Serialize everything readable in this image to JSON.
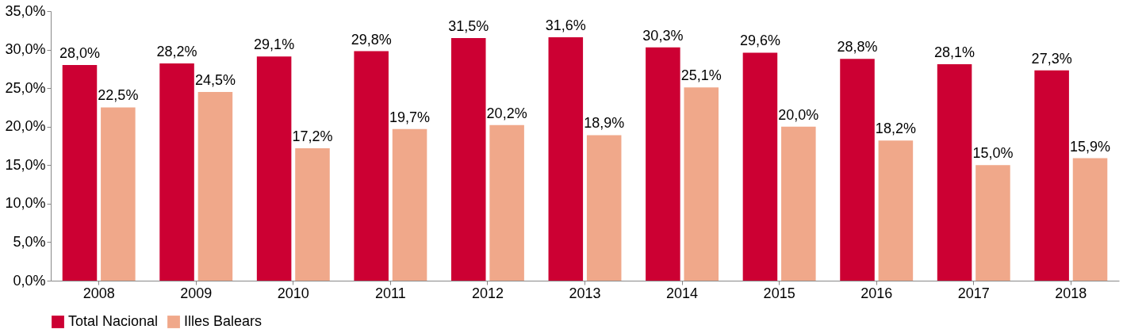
{
  "chart_data": {
    "type": "bar",
    "categories": [
      "2008",
      "2009",
      "2010",
      "2011",
      "2012",
      "2013",
      "2014",
      "2015",
      "2016",
      "2017",
      "2018"
    ],
    "series": [
      {
        "name": "Total Nacional",
        "color": "#cc0033",
        "values": [
          28.0,
          28.2,
          29.1,
          29.8,
          31.5,
          31.6,
          30.3,
          29.6,
          28.8,
          28.1,
          27.3
        ],
        "value_labels": [
          "28,0%",
          "28,2%",
          "29,1%",
          "29,8%",
          "31,5%",
          "31,6%",
          "30,3%",
          "29,6%",
          "28,8%",
          "28,1%",
          "27,3%"
        ]
      },
      {
        "name": "Illes Balears",
        "color": "#f0a88a",
        "values": [
          22.5,
          24.5,
          17.2,
          19.7,
          20.2,
          18.9,
          25.1,
          20.0,
          18.2,
          15.0,
          15.9
        ],
        "value_labels": [
          "22,5%",
          "24,5%",
          "17,2%",
          "19,7%",
          "20,2%",
          "18,9%",
          "25,1%",
          "20,0%",
          "18,2%",
          "15,0%",
          "15,9%"
        ]
      }
    ],
    "ylim": [
      0,
      35
    ],
    "yticks": [
      {
        "value": 0,
        "label": "0,0%"
      },
      {
        "value": 5,
        "label": "5,0%"
      },
      {
        "value": 10,
        "label": "10,0%"
      },
      {
        "value": 15,
        "label": "15,0%"
      },
      {
        "value": 20,
        "label": "20,0%"
      },
      {
        "value": 25,
        "label": "25,0%"
      },
      {
        "value": 30,
        "label": "30,0%"
      },
      {
        "value": 35,
        "label": "35,0%"
      }
    ],
    "grid": false,
    "legend": "bottom"
  }
}
